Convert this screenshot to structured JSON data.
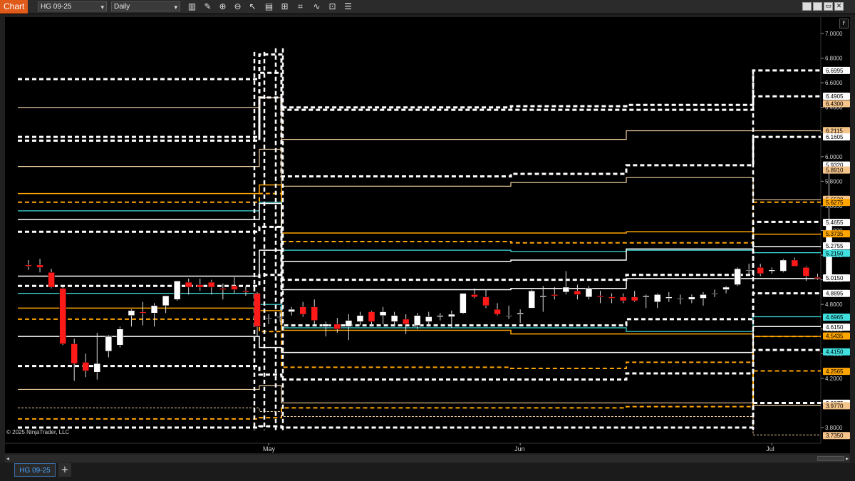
{
  "window": {
    "title": "Chart",
    "instrument": "HG 09-25",
    "interval": "Daily",
    "panel_marker": "F"
  },
  "toolbar": {
    "tools": [
      "bar-type-icon",
      "drawing-tool-icon",
      "zoom-in-icon",
      "zoom-out-icon",
      "pointer-icon",
      "data-box-icon",
      "templates-icon",
      "strategies-icon",
      "indicators-icon",
      "properties-icon"
    ]
  },
  "window_buttons": [
    "minimize-icon",
    "restore-icon",
    "maximize-icon",
    "close-icon"
  ],
  "copyright": "© 2025 NinjaTrader, LLC",
  "tabs": [
    {
      "label": "HG 09-25"
    }
  ],
  "colors": {
    "background": "#000000",
    "up_candle": "#ffffff",
    "down_candle": "#ff1a1a",
    "white_level": "#ffffff",
    "tan_level": "#f0d0a0",
    "orange_level": "#ffa500",
    "cyan_level": "#40e0e0",
    "app_accent": "#e05a1a"
  },
  "chart_data": {
    "type": "candlestick",
    "instrument": "HG 09-25",
    "timeframe": "Daily",
    "y_ticks": [
      "7.0000",
      "6.8000",
      "6.6000",
      "6.4000",
      "6.2000",
      "6.0000",
      "5.8000",
      "5.6000",
      "5.4000",
      "5.2000",
      "5.0000",
      "4.8000",
      "4.6000",
      "4.4000",
      "4.2000",
      "4.0000",
      "3.8000"
    ],
    "ylim": [
      3.7,
      7.05
    ],
    "x_labels": [
      {
        "label": "May",
        "index": 21
      },
      {
        "label": "Jun",
        "index": 43
      },
      {
        "label": "Jul",
        "index": 65
      }
    ],
    "price_markers": [
      {
        "value": "6.6995",
        "color": "#ffffff",
        "text": "#000000"
      },
      {
        "value": "6.4905",
        "color": "#ffffff",
        "text": "#000000"
      },
      {
        "value": "6.4300",
        "color": "#f5c48a",
        "text": "#000000"
      },
      {
        "value": "6.2115",
        "color": "#f5c48a",
        "text": "#000000"
      },
      {
        "value": "6.1605",
        "color": "#ffffff",
        "text": "#000000"
      },
      {
        "value": "5.9320",
        "color": "#ffffff",
        "text": "#000000"
      },
      {
        "value": "5.8910",
        "color": "#f5c48a",
        "text": "#000000"
      },
      {
        "value": "5.6530",
        "color": "#f5c48a",
        "text": "#000000"
      },
      {
        "value": "5.6275",
        "color": "#ffa500",
        "text": "#000000"
      },
      {
        "value": "5.4655",
        "color": "#ffffff",
        "text": "#000000"
      },
      {
        "value": "5.3735",
        "color": "#ffa500",
        "text": "#000000"
      },
      {
        "value": "5.2755",
        "color": "#ffffff",
        "text": "#000000"
      },
      {
        "value": "5.2150",
        "color": "#40e0e0",
        "text": "#000000"
      },
      {
        "value": "5.0150",
        "color": "#ffffff",
        "text": "#000000"
      },
      {
        "value": "4.8895",
        "color": "#ffffff",
        "text": "#000000"
      },
      {
        "value": "4.6965",
        "color": "#40e0e0",
        "text": "#000000"
      },
      {
        "value": "4.6150",
        "color": "#ffffff",
        "text": "#000000"
      },
      {
        "value": "4.5435",
        "color": "#ffa500",
        "text": "#000000"
      },
      {
        "value": "4.4150",
        "color": "#40e0e0",
        "text": "#000000"
      },
      {
        "value": "4.2565",
        "color": "#ffa500",
        "text": "#000000"
      },
      {
        "value": "3.9975",
        "color": "#ffffff",
        "text": "#000000"
      },
      {
        "value": "3.9770",
        "color": "#f5c48a",
        "text": "#000000"
      },
      {
        "value": "3.7350",
        "color": "#f5c48a",
        "text": "#000000"
      }
    ],
    "candles": [
      [
        5.12,
        5.16,
        5.08,
        5.11
      ],
      [
        5.12,
        5.17,
        5.06,
        5.1
      ],
      [
        5.06,
        5.09,
        4.93,
        4.94
      ],
      [
        4.93,
        4.95,
        4.47,
        4.48
      ],
      [
        4.48,
        4.52,
        4.18,
        4.32
      ],
      [
        4.33,
        4.4,
        4.21,
        4.26
      ],
      [
        4.25,
        4.57,
        4.19,
        4.32
      ],
      [
        4.42,
        4.55,
        4.37,
        4.54
      ],
      [
        4.47,
        4.62,
        4.45,
        4.6
      ],
      [
        4.71,
        4.76,
        4.62,
        4.75
      ],
      [
        4.74,
        4.82,
        4.63,
        4.73
      ],
      [
        4.73,
        4.81,
        4.62,
        4.79
      ],
      [
        4.79,
        4.87,
        4.73,
        4.87
      ],
      [
        4.84,
        4.99,
        4.83,
        4.99
      ],
      [
        4.98,
        5.01,
        4.88,
        4.94
      ],
      [
        4.96,
        5.01,
        4.91,
        4.94
      ],
      [
        4.98,
        5.0,
        4.88,
        4.94
      ],
      [
        4.93,
        4.97,
        4.84,
        4.92
      ],
      [
        4.95,
        5.02,
        4.89,
        4.92
      ],
      [
        4.91,
        4.95,
        4.87,
        4.9
      ],
      [
        4.89,
        4.9,
        4.54,
        4.62
      ],
      [
        4.69,
        4.72,
        4.64,
        4.69
      ],
      [
        4.7,
        4.74,
        4.66,
        4.7
      ],
      [
        4.74,
        4.78,
        4.71,
        4.76
      ],
      [
        4.78,
        4.82,
        4.7,
        4.72
      ],
      [
        4.78,
        4.84,
        4.64,
        4.67
      ],
      [
        4.62,
        4.66,
        4.54,
        4.64
      ],
      [
        4.64,
        4.69,
        4.57,
        4.6
      ],
      [
        4.62,
        4.72,
        4.51,
        4.67
      ],
      [
        4.66,
        4.74,
        4.63,
        4.71
      ],
      [
        4.74,
        4.75,
        4.63,
        4.66
      ],
      [
        4.71,
        4.78,
        4.64,
        4.74
      ],
      [
        4.66,
        4.74,
        4.62,
        4.71
      ],
      [
        4.68,
        4.72,
        4.56,
        4.64
      ],
      [
        4.63,
        4.73,
        4.6,
        4.71
      ],
      [
        4.66,
        4.74,
        4.63,
        4.7
      ],
      [
        4.7,
        4.73,
        4.67,
        4.71
      ],
      [
        4.7,
        4.75,
        4.61,
        4.72
      ],
      [
        4.73,
        4.89,
        4.72,
        4.89
      ],
      [
        4.88,
        4.93,
        4.85,
        4.86
      ],
      [
        4.86,
        4.92,
        4.77,
        4.79
      ],
      [
        4.76,
        4.81,
        4.71,
        4.72
      ],
      [
        4.71,
        4.79,
        4.68,
        4.71
      ],
      [
        4.72,
        4.76,
        4.65,
        4.73
      ],
      [
        4.77,
        4.92,
        4.77,
        4.91
      ],
      [
        4.86,
        4.95,
        4.74,
        4.87
      ],
      [
        4.88,
        4.94,
        4.84,
        4.87
      ],
      [
        4.9,
        5.07,
        4.88,
        4.94
      ],
      [
        4.91,
        4.96,
        4.84,
        4.88
      ],
      [
        4.86,
        4.95,
        4.84,
        4.93
      ],
      [
        4.87,
        4.91,
        4.81,
        4.86
      ],
      [
        4.86,
        4.89,
        4.81,
        4.85
      ],
      [
        4.86,
        4.89,
        4.81,
        4.83
      ],
      [
        4.86,
        4.91,
        4.82,
        4.83
      ],
      [
        4.86,
        4.88,
        4.77,
        4.87
      ],
      [
        4.82,
        4.89,
        4.77,
        4.88
      ],
      [
        4.85,
        4.9,
        4.82,
        4.86
      ],
      [
        4.85,
        4.88,
        4.8,
        4.85
      ],
      [
        4.84,
        4.88,
        4.81,
        4.86
      ],
      [
        4.85,
        4.9,
        4.79,
        4.88
      ],
      [
        4.89,
        4.92,
        4.86,
        4.89
      ],
      [
        4.92,
        4.95,
        4.89,
        4.94
      ],
      [
        4.96,
        5.1,
        4.95,
        5.09
      ],
      [
        5.08,
        5.13,
        5.04,
        5.08
      ],
      [
        5.1,
        5.13,
        5.03,
        5.05
      ],
      [
        5.07,
        5.1,
        5.05,
        5.08
      ],
      [
        5.07,
        5.17,
        5.06,
        5.16
      ],
      [
        5.16,
        5.18,
        5.11,
        5.11
      ],
      [
        5.1,
        5.11,
        4.99,
        5.03
      ],
      [
        5.02,
        5.05,
        5.0,
        5.01
      ],
      [
        5.0,
        5.9,
        4.99,
        5.47
      ]
    ]
  }
}
